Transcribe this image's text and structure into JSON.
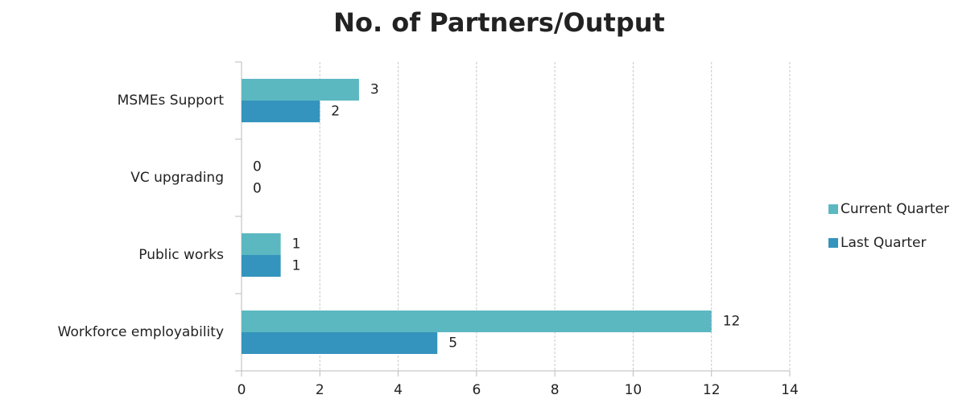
{
  "chart_data": {
    "type": "hbar",
    "title": "No. of Partners/Output",
    "categories": [
      "MSMEs Support",
      "VC upgrading",
      "Public works",
      "Workforce employability"
    ],
    "series": [
      {
        "name": "Current Quarter",
        "color": "#5bb8c1",
        "values": [
          3,
          0,
          1,
          12
        ]
      },
      {
        "name": "Last Quarter",
        "color": "#3494bd",
        "values": [
          2,
          0,
          1,
          5
        ]
      }
    ],
    "xlim": [
      0,
      14
    ],
    "xticks": [
      0,
      2,
      4,
      6,
      8,
      10,
      12,
      14
    ],
    "grid": true,
    "legend": "right"
  }
}
